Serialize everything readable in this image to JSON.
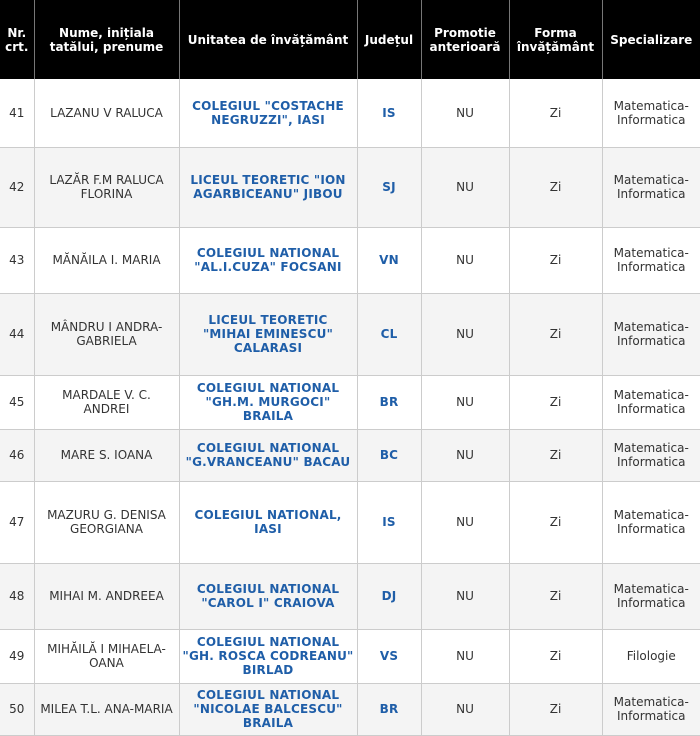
{
  "headers": {
    "nr": "Nr. crt.",
    "name": "Nume, inițiala tatălui, prenume",
    "school": "Unitatea de învățământ",
    "county": "Județul",
    "promotion": "Promotie anterioară",
    "form": "Forma învățământ",
    "specialization": "Specializare"
  },
  "rows": [
    {
      "nr": "41",
      "name": "LAZANU V RALUCA",
      "school": "COLEGIUL \"COSTACHE NEGRUZZI\", IASI",
      "county": "IS",
      "promotion": "NU",
      "form": "Zi",
      "specialization": "Matematica-Informatica"
    },
    {
      "nr": "42",
      "name": "LAZĂR F.M RALUCA FLORINA",
      "school": "LICEUL TEORETIC \"ION AGARBICEANU\" JIBOU",
      "county": "SJ",
      "promotion": "NU",
      "form": "Zi",
      "specialization": "Matematica-Informatica"
    },
    {
      "nr": "43",
      "name": "MĂNĂILA I. MARIA",
      "school": "COLEGIUL NATIONAL \"AL.I.CUZA\" FOCSANI",
      "county": "VN",
      "promotion": "NU",
      "form": "Zi",
      "specialization": "Matematica-Informatica"
    },
    {
      "nr": "44",
      "name": "MÂNDRU I ANDRA-GABRIELA",
      "school": "LICEUL TEORETIC \"MIHAI EMINESCU\" CALARASI",
      "county": "CL",
      "promotion": "NU",
      "form": "Zi",
      "specialization": "Matematica-Informatica"
    },
    {
      "nr": "45",
      "name": "MARDALE V. C. ANDREI",
      "school": "COLEGIUL NATIONAL \"GH.M. MURGOCI\" BRAILA",
      "county": "BR",
      "promotion": "NU",
      "form": "Zi",
      "specialization": "Matematica-Informatica"
    },
    {
      "nr": "46",
      "name": "MARE S. IOANA",
      "school": "COLEGIUL NATIONAL \"G.VRANCEANU\" BACAU",
      "county": "BC",
      "promotion": "NU",
      "form": "Zi",
      "specialization": "Matematica-Informatica"
    },
    {
      "nr": "47",
      "name": "MAZURU G. DENISA GEORGIANA",
      "school": "COLEGIUL NATIONAL, IASI",
      "county": "IS",
      "promotion": "NU",
      "form": "Zi",
      "specialization": "Matematica-Informatica"
    },
    {
      "nr": "48",
      "name": "MIHAI M. ANDREEA",
      "school": "COLEGIUL NATIONAL \"CAROL I\" CRAIOVA",
      "county": "DJ",
      "promotion": "NU",
      "form": "Zi",
      "specialization": "Matematica-Informatica"
    },
    {
      "nr": "49",
      "name": "MIHĂILĂ I MIHAELA-OANA",
      "school": "COLEGIUL NATIONAL \"GH. ROSCA CODREANU\" BIRLAD",
      "county": "VS",
      "promotion": "NU",
      "form": "Zi",
      "specialization": "Filologie"
    },
    {
      "nr": "50",
      "name": "MILEA T.L. ANA-MARIA",
      "school": "COLEGIUL NATIONAL \"NICOLAE BALCESCU\" BRAILA",
      "county": "BR",
      "promotion": "NU",
      "form": "Zi",
      "specialization": "Matematica-Informatica"
    }
  ]
}
